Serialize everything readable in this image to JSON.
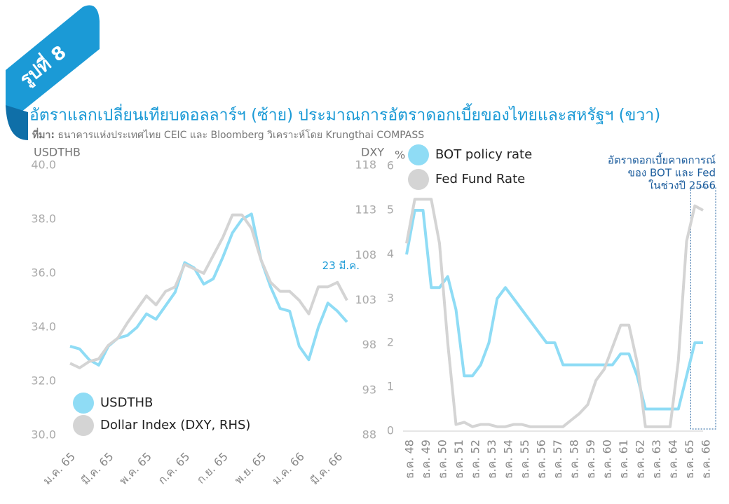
{
  "header": {
    "badge": "รูปที่ 8",
    "title": "อัตราแลกเปลี่ยนเทียบดอลลาร์ฯ (ซ้าย) ประมาณการอัตราดอกเบี้ยของไทยและสหรัฐฯ (ขวา)",
    "source_label": "ที่มา:",
    "source": "ธนาคารแห่งประเทศไทย CEIC และ Bloomberg วิเคราะห์โดย Krungthai COMPASS"
  },
  "chart_data": [
    {
      "type": "line",
      "ylabel": "USDTHB",
      "y2label": "DXY",
      "annotation": "23 มี.ค.",
      "categories": [
        "ม.ค. 65",
        null,
        null,
        null,
        "มี.ค. 65",
        null,
        null,
        null,
        "พ.ค. 65",
        null,
        null,
        null,
        "ก.ค. 65",
        null,
        null,
        null,
        "ก.ย. 65",
        null,
        null,
        null,
        "พ.ย. 65",
        null,
        null,
        null,
        "ม.ค. 66",
        null,
        null,
        null,
        "มี.ค. 66",
        null
      ],
      "series": [
        {
          "name": "USDTHB",
          "color": "#8fdcf5",
          "values": [
            33.3,
            33.2,
            32.8,
            32.6,
            33.3,
            33.6,
            33.7,
            34.0,
            34.5,
            34.3,
            34.8,
            35.3,
            36.4,
            36.2,
            35.6,
            35.8,
            36.6,
            37.5,
            38.0,
            38.2,
            36.5,
            35.5,
            34.7,
            34.6,
            33.3,
            32.8,
            34.0,
            34.9,
            34.6,
            34.2
          ]
        },
        {
          "name": "Dollar Index (DXY, RHS)",
          "color": "#d4d4d4",
          "axis": "y2",
          "values": [
            96,
            95.5,
            96.2,
            96.5,
            98,
            98.8,
            100.5,
            102,
            103.5,
            102.5,
            104,
            104.5,
            107,
            106.5,
            106,
            108,
            110,
            112.5,
            112.5,
            111,
            107.5,
            105,
            104,
            104,
            103,
            101.5,
            104.5,
            104.5,
            105,
            103
          ]
        }
      ],
      "ylim": [
        30,
        40
      ],
      "yticks": [
        {
          "value": 30,
          "label": "30.0"
        },
        {
          "value": 32,
          "label": "32.0"
        },
        {
          "value": 34,
          "label": "34.0"
        },
        {
          "value": 36,
          "label": "36.0"
        },
        {
          "value": 38,
          "label": "38.0"
        },
        {
          "value": 40,
          "label": "40.0"
        }
      ],
      "y2lim": [
        88,
        118
      ],
      "y2ticks": [
        88,
        93,
        98,
        103,
        108,
        113,
        118
      ]
    },
    {
      "type": "line",
      "ylabel": "%",
      "annotation": [
        "อัตราดอกเบี้ยคาดการณ์",
        "ของ BOT และ Fed",
        "ในช่วงปี 2566"
      ],
      "categories": [
        "ธ.ค. 48",
        null,
        "ธ.ค. 49",
        null,
        "ธ.ค. 50",
        null,
        "ธ.ค. 51",
        null,
        "ธ.ค. 52",
        null,
        "ธ.ค. 53",
        null,
        "ธ.ค. 54",
        null,
        "ธ.ค. 55",
        null,
        "ธ.ค. 56",
        null,
        "ธ.ค. 57",
        null,
        "ธ.ค. 58",
        null,
        "ธ.ค. 59",
        null,
        "ธ.ค. 60",
        null,
        "ธ.ค. 61",
        null,
        "ธ.ค. 62",
        null,
        "ธ.ค. 63",
        null,
        "ธ.ค. 64",
        null,
        "ธ.ค. 65",
        null,
        "ธ.ค. 66"
      ],
      "series": [
        {
          "name": "BOT policy rate",
          "color": "#8fdcf5",
          "values": [
            4.0,
            5.0,
            5.0,
            3.25,
            3.25,
            3.5,
            2.75,
            1.25,
            1.25,
            1.5,
            2.0,
            3.0,
            3.25,
            3.0,
            2.75,
            2.5,
            2.25,
            2.0,
            2.0,
            1.5,
            1.5,
            1.5,
            1.5,
            1.5,
            1.5,
            1.5,
            1.75,
            1.75,
            1.25,
            0.5,
            0.5,
            0.5,
            0.5,
            0.5,
            1.25,
            2.0,
            2.0
          ]
        },
        {
          "name": "Fed Fund Rate",
          "color": "#d4d4d4",
          "values": [
            4.25,
            5.25,
            5.25,
            5.25,
            4.25,
            2.0,
            0.15,
            0.2,
            0.1,
            0.15,
            0.15,
            0.1,
            0.1,
            0.15,
            0.15,
            0.1,
            0.1,
            0.1,
            0.1,
            0.1,
            0.25,
            0.4,
            0.6,
            1.15,
            1.4,
            1.9,
            2.4,
            2.4,
            1.55,
            0.1,
            0.1,
            0.1,
            0.1,
            1.6,
            4.3,
            5.1,
            5.0
          ]
        }
      ],
      "ylim": [
        0,
        6
      ],
      "yticks": [
        0,
        1,
        2,
        3,
        4,
        5,
        6
      ]
    }
  ]
}
